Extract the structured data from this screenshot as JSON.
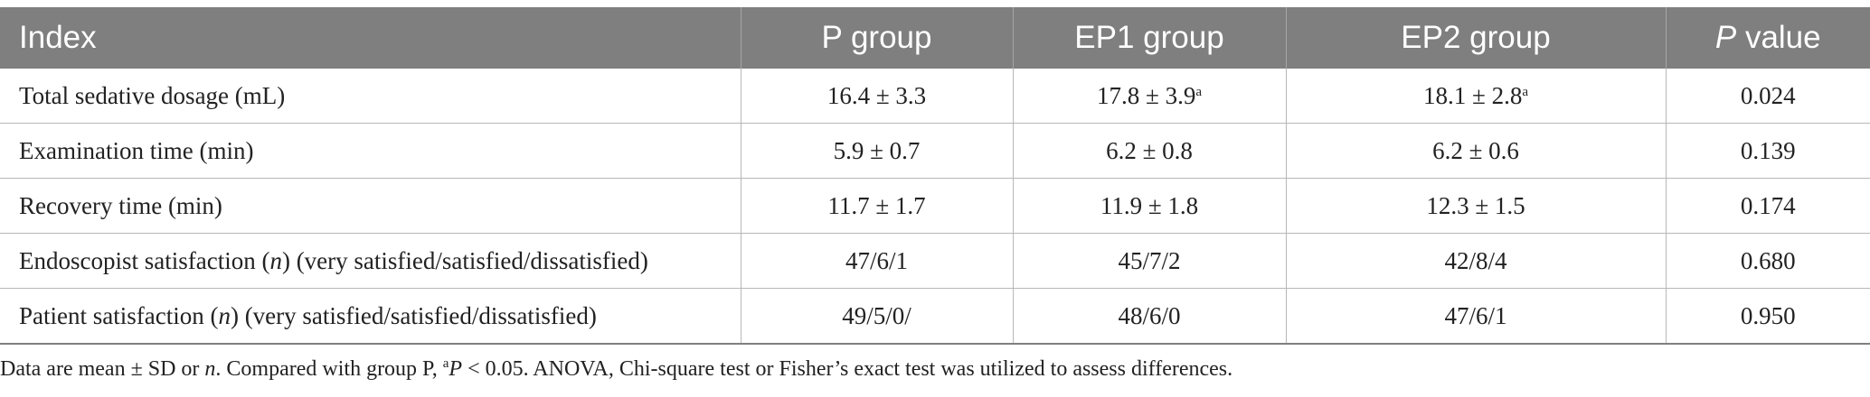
{
  "table": {
    "headers": {
      "index": "Index",
      "p_group": "P group",
      "ep1_group": "EP1 group",
      "ep2_group": "EP2 group",
      "p_value_italic": "P",
      "p_value_rest": " value"
    },
    "rows": [
      {
        "index_text": "Total sedative dosage (mL)",
        "p_group": "16.4 ± 3.3",
        "ep1_group": "17.8 ± 3.9",
        "ep1_sup": "a",
        "ep2_group": "18.1 ± 2.8",
        "ep2_sup": "a",
        "p_value": "0.024"
      },
      {
        "index_text": "Examination time (min)",
        "p_group": "5.9 ± 0.7",
        "ep1_group": "6.2 ± 0.8",
        "ep2_group": "6.2 ± 0.6",
        "p_value": "0.139"
      },
      {
        "index_text": "Recovery time (min)",
        "p_group": "11.7 ± 1.7",
        "ep1_group": "11.9 ± 1.8",
        "ep2_group": "12.3 ± 1.5",
        "p_value": "0.174"
      },
      {
        "index_prefix": "Endoscopist satisfaction (",
        "index_italic": "n",
        "index_suffix": ") (very satisfied/satisfied/dissatisfied)",
        "p_group": "47/6/1",
        "ep1_group": "45/7/2",
        "ep2_group": "42/8/4",
        "p_value": "0.680"
      },
      {
        "index_prefix": "Patient satisfaction (",
        "index_italic": "n",
        "index_suffix": ") (very satisfied/satisfied/dissatisfied)",
        "p_group": "49/5/0/",
        "ep1_group": "48/6/0",
        "ep2_group": "47/6/1",
        "p_value": "0.950"
      }
    ]
  },
  "footnote": {
    "part1": "Data are mean ± SD or ",
    "italic_n": "n",
    "part2": ". Compared with group P, ",
    "sup_a": "a",
    "italic_p": "P",
    "part3": " < 0.05. ANOVA, Chi-square test or Fisher’s exact test was utilized to assess differences."
  },
  "colors": {
    "header_bg": "#7f7f7f",
    "header_text": "#ffffff",
    "grid_line": "#b7b7b7"
  }
}
